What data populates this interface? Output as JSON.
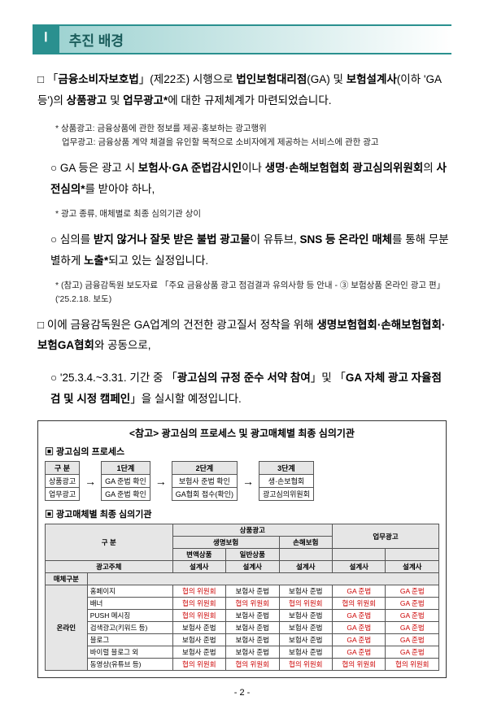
{
  "section": {
    "num": "Ⅰ",
    "title": "추진 배경"
  },
  "p1": {
    "prefix": "□ 「",
    "law": "금융소비자보호법",
    "mid1": "」(제22조) 시행으로 ",
    "b1": "법인보험대리점",
    "mid2": "(GA) 및 ",
    "b2": "보험설계사",
    "mid3": "(이하 'GA 등')의 ",
    "b3": "상품광고 ",
    "mid4": "및 ",
    "b4": "업무광고*",
    "mid5": "에 대한 규제체계가 마련되었습니다."
  },
  "note1": "* 상품광고: 금융상품에 관한 정보를 제공·홍보하는 광고행위",
  "note1b": "업무광고: 금융상품 계약 체결을 유인할 목적으로 소비자에게 제공하는 서비스에 관한 광고",
  "p2": {
    "prefix": "○ GA 등은 광고 시 ",
    "b1": "보험사·GA 준법감시인",
    "mid1": "이나 ",
    "b2": "생명·손해보험협회 광고심의위원회",
    "mid2": "의 ",
    "b3": "사전심의*",
    "mid3": "를 받아야 하나,"
  },
  "note2": "* 광고 종류, 매체별로 최종 심의기관 상이",
  "p3": {
    "prefix": "○ 심의를 ",
    "b1": "받지 않거나 잘못 받은 불법 광고물",
    "mid1": "이 유튜브, ",
    "b2": "SNS 등 온라인 매체",
    "mid2": "를 통해 무분별하게 ",
    "b3": "노출*",
    "mid3": "되고 있는 실정입니다."
  },
  "note3": "* (참고) 금융감독원 보도자료 「주요 금융상품 광고 점검결과 유의사항 등 안내 - ③ 보험상품 온라인 광고 편」('25.2.18. 보도)",
  "p4": {
    "prefix": "□ 이에 금융감독원은 GA업계의 건전한 광고질서 정착을 위해 ",
    "b1": "생명보험협회·손해보험협회·보험GA협회",
    "suffix": "와 공동으로,"
  },
  "p5": {
    "prefix": "○ '25.3.4.~3.31. 기간 중 「",
    "b1": "광고심의 규정 준수 서약 참여",
    "mid1": "」및 「",
    "b2": "GA 자체 광고 자율점검 및 시정 캠페인",
    "suffix": "」을 실시할 예정입니다."
  },
  "ref": {
    "title": "<참고> 광고심의 프로세스 및 광고매체별 최종 심의기관",
    "sub1": "▣ 광고심의 프로세스",
    "sub2": "▣ 광고매체별 최종 심의기관"
  },
  "proc": {
    "col0": {
      "h": "구 분",
      "r1": "상품광고",
      "r2": "업무광고"
    },
    "col1": {
      "h": "1단계",
      "r1": "GA 준법 확인",
      "r2": "GA 준법 확인"
    },
    "col2": {
      "h": "2단계",
      "r1": "보험사 준법 확인",
      "r2": "GA협회 접수(확인)"
    },
    "col3": {
      "h": "3단계",
      "r1": "생·손보협회",
      "r2": "광고심의위원회"
    }
  },
  "media": {
    "headers": {
      "gubun": "구 분",
      "product": "상품광고",
      "life": "생명보험",
      "nonlife": "손해보험",
      "biz": "업무광고",
      "variable": "변액상품",
      "general": "일반상품",
      "gwangju": "광고주체",
      "seolgye": "설계사",
      "mediaType": "매체구분",
      "online": "온라인"
    },
    "rows": [
      {
        "label": "홈페이지",
        "c1": "협의 위원회",
        "c2": "보험사 준법",
        "c3": "보험사 준법",
        "c4": "GA 준법",
        "c5": "GA 준법"
      },
      {
        "label": "배너",
        "c1": "협의 위원회",
        "c2": "협의 위원회",
        "c3": "협의 위원회",
        "c4": "협의 위원회",
        "c5": "GA 준법"
      },
      {
        "label": "PUSH 메시징",
        "c1": "협의 위원회",
        "c2": "보험사 준법",
        "c3": "보험사 준법",
        "c4": "GA 준법",
        "c5": "GA 준법"
      },
      {
        "label": "검색광고(키워드 등)",
        "c1": "보험사 준법",
        "c2": "보험사 준법",
        "c3": "보험사 준법",
        "c4": "GA 준법",
        "c5": "GA 준법"
      },
      {
        "label": "블로그",
        "c1": "보험사 준법",
        "c2": "보험사 준법",
        "c3": "보험사 준법",
        "c4": "GA 준법",
        "c5": "GA 준법"
      },
      {
        "label": "바이럴",
        "sublabel": "블로그 외",
        "c1": "보험사 준법",
        "c2": "보험사 준법",
        "c3": "보험사 준법",
        "c4": "GA 준법",
        "c5": "GA 준법"
      },
      {
        "label": "동영상(유튜브 등)",
        "c1": "협의 위원회",
        "c2": "협의 위원회",
        "c3": "협의 위원회",
        "c4": "협의 위원회",
        "c5": "협의 위원회"
      }
    ]
  },
  "pageNum": "- 2 -"
}
